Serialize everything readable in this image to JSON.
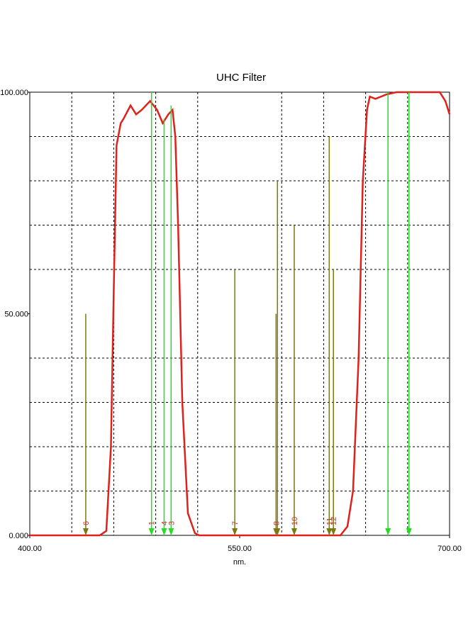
{
  "chart_data": {
    "type": "line",
    "title": "UHC Filter",
    "x_label": "nm.",
    "xlim": [
      400,
      700
    ],
    "ylim": [
      0,
      100
    ],
    "xticks": [
      {
        "value": 400,
        "label": "400.00"
      },
      {
        "value": 550,
        "label": "550.00"
      },
      {
        "value": 700,
        "label": "700.00"
      }
    ],
    "yticks": [
      {
        "value": 0,
        "label": "0.000"
      },
      {
        "value": 50,
        "label": "50.000"
      },
      {
        "value": 100,
        "label": "100.000"
      }
    ],
    "xgrid": [
      430,
      460,
      490,
      520,
      580,
      610,
      640,
      670
    ],
    "ygrid": [
      10,
      20,
      30,
      40,
      60,
      70,
      80,
      90
    ],
    "grid": true,
    "series": [
      {
        "name": "UHC Filter",
        "color": "#e0201b",
        "x": [
          400,
          450,
          454.7,
          458,
          460,
          462,
          465,
          467,
          472,
          476,
          480,
          486,
          491,
          495,
          499,
          502,
          504,
          506,
          509,
          513,
          518,
          521,
          622,
          627,
          631,
          635,
          638,
          641,
          643,
          647,
          655,
          662,
          683,
          693,
          697,
          700
        ],
        "y": [
          0,
          0,
          1,
          20,
          55,
          88,
          93,
          94,
          97,
          95,
          96,
          98,
          96,
          93,
          95,
          96,
          90,
          70,
          30,
          5,
          0.5,
          0,
          0,
          2,
          10,
          40,
          80,
          96,
          99,
          98.5,
          99.5,
          100,
          100,
          100,
          98,
          95
        ]
      }
    ],
    "markers": [
      {
        "x": 440,
        "value": 50,
        "label": "6",
        "color": "#7a7a10"
      },
      {
        "x": 487,
        "value": 100,
        "label": "1",
        "color": "#22dd22"
      },
      {
        "x": 496,
        "value": 94,
        "label": "4",
        "color": "#22dd22"
      },
      {
        "x": 501,
        "value": 97,
        "label": "3",
        "color": "#22dd22"
      },
      {
        "x": 546.5,
        "value": 60,
        "label": "7",
        "color": "#7a7a10"
      },
      {
        "x": 576,
        "value": 50,
        "label": "8",
        "color": "#7a7a10"
      },
      {
        "x": 577,
        "value": 80,
        "label": null,
        "color": "#7a7a10"
      },
      {
        "x": 589,
        "value": 70,
        "label": "10",
        "color": "#7a7a10"
      },
      {
        "x": 614,
        "value": 90,
        "label": "11",
        "color": "#7a7a10"
      },
      {
        "x": 617,
        "value": 60,
        "label": "12",
        "color": "#7a7a10"
      },
      {
        "x": 656,
        "value": 100,
        "label": null,
        "color": "#22dd22"
      },
      {
        "x": 671,
        "value": 100,
        "label": null,
        "color": "#22dd22"
      }
    ]
  }
}
